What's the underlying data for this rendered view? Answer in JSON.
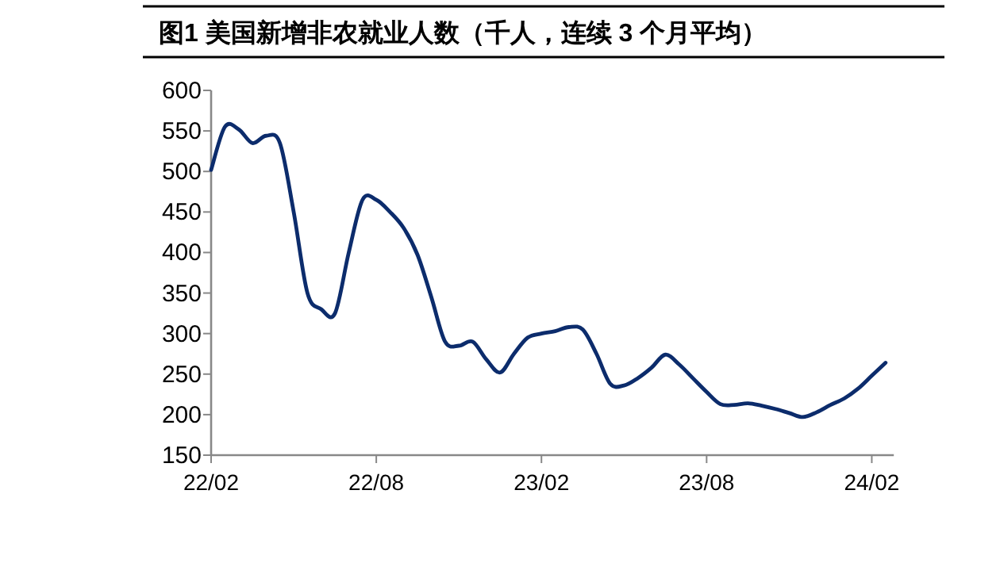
{
  "chart_data": {
    "type": "line",
    "title": "图1  美国新增非农就业人数（千人，连续 3 个月平均）",
    "categories": [
      "22/02",
      null,
      null,
      null,
      null,
      null,
      null,
      null,
      null,
      null,
      null,
      null,
      "22/08",
      null,
      null,
      null,
      null,
      null,
      null,
      null,
      null,
      null,
      null,
      null,
      "23/02",
      null,
      null,
      null,
      null,
      null,
      null,
      null,
      null,
      null,
      null,
      null,
      "23/08",
      null,
      null,
      null,
      null,
      null,
      null,
      null,
      null,
      null,
      null,
      null,
      "24/02",
      null
    ],
    "series": [
      {
        "color": "#0c2c6c",
        "values": [
          502,
          555,
          552,
          535,
          544,
          535,
          450,
          350,
          330,
          325,
          400,
          465,
          465,
          450,
          430,
          397,
          345,
          290,
          285,
          290,
          268,
          252,
          275,
          295,
          300,
          303,
          308,
          305,
          275,
          238,
          236,
          245,
          258,
          274,
          262,
          245,
          228,
          213,
          212,
          214,
          211,
          207,
          202,
          197,
          203,
          212,
          220,
          232,
          248,
          264
        ]
      }
    ],
    "ylim": [
      150,
      600
    ],
    "yticks": [
      150,
      200,
      250,
      300,
      350,
      400,
      450,
      500,
      550,
      600
    ],
    "grid": false,
    "marker": "none",
    "line_style": "solid"
  }
}
